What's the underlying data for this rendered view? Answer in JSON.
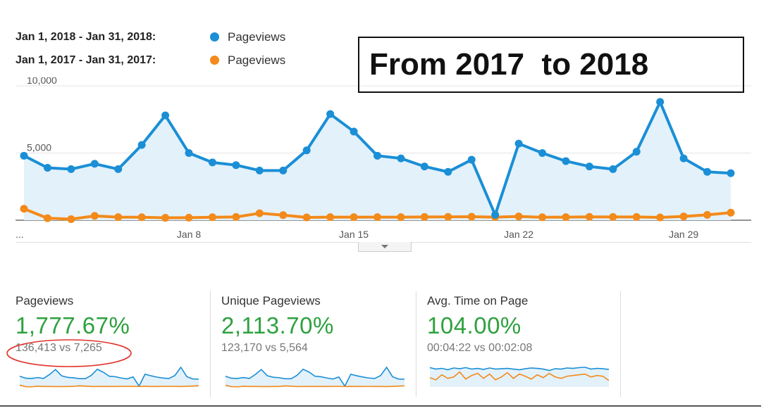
{
  "legend": [
    {
      "range": "Jan 1, 2018 - Jan 31, 2018:",
      "label": "Pageviews",
      "color": "#1a8fd6"
    },
    {
      "range": "Jan 1, 2017 - Jan 31, 2017:",
      "label": "Pageviews",
      "color": "#f38a1a"
    }
  ],
  "callout": {
    "text": "From 2017  to 2018"
  },
  "chart_data": {
    "type": "line",
    "x": [
      "Jan 1",
      "Jan 2",
      "Jan 3",
      "Jan 4",
      "Jan 5",
      "Jan 6",
      "Jan 7",
      "Jan 8",
      "Jan 9",
      "Jan 10",
      "Jan 11",
      "Jan 12",
      "Jan 13",
      "Jan 14",
      "Jan 15",
      "Jan 16",
      "Jan 17",
      "Jan 18",
      "Jan 19",
      "Jan 20",
      "Jan 21",
      "Jan 22",
      "Jan 23",
      "Jan 24",
      "Jan 25",
      "Jan 26",
      "Jan 27",
      "Jan 28",
      "Jan 29",
      "Jan 30",
      "Jan 31"
    ],
    "series": [
      {
        "name": "Pageviews",
        "period": "Jan 1, 2018 - Jan 31, 2018",
        "color": "#1a8fd6",
        "values": [
          4800,
          3900,
          3800,
          4200,
          3800,
          5600,
          7800,
          5000,
          4300,
          4100,
          3700,
          3700,
          5200,
          7900,
          6600,
          4800,
          4600,
          4000,
          3600,
          4500,
          400,
          5700,
          5000,
          4400,
          4000,
          3800,
          5100,
          8800,
          4600,
          3600,
          3500
        ]
      },
      {
        "name": "Pageviews",
        "period": "Jan 1, 2017 - Jan 31, 2017",
        "color": "#f38a1a",
        "values": [
          850,
          150,
          80,
          320,
          230,
          220,
          180,
          190,
          220,
          240,
          520,
          380,
          210,
          230,
          230,
          230,
          230,
          240,
          250,
          260,
          230,
          280,
          220,
          230,
          250,
          240,
          240,
          210,
          280,
          400,
          560
        ]
      }
    ],
    "ytick_labels": [
      "10,000",
      "5,000"
    ],
    "ylim": [
      0,
      10000
    ],
    "xtick_labels": [
      {
        "label": "Jan 8",
        "x": "Jan 8"
      },
      {
        "label": "Jan 15",
        "x": "Jan 15"
      },
      {
        "label": "Jan 22",
        "x": "Jan 22"
      },
      {
        "label": "Jan 29",
        "x": "Jan 29"
      }
    ],
    "ellipsis": "...",
    "grid": true
  },
  "metrics": [
    {
      "title": "Pageviews",
      "pct": "1,777.67%",
      "cmp": "136,413 vs 7,265",
      "spark_a": [
        4800,
        3900,
        3800,
        4200,
        3800,
        5600,
        7800,
        5000,
        4300,
        4100,
        3700,
        3700,
        5200,
        7900,
        6600,
        4800,
        4600,
        4000,
        3600,
        4500,
        400,
        5700,
        5000,
        4400,
        4000,
        3800,
        5100,
        8800,
        4600,
        3600,
        3500
      ],
      "spark_b": [
        850,
        150,
        80,
        320,
        230,
        220,
        180,
        190,
        220,
        240,
        520,
        380,
        210,
        230,
        230,
        230,
        230,
        240,
        250,
        260,
        230,
        280,
        220,
        230,
        250,
        240,
        240,
        210,
        280,
        400,
        560
      ]
    },
    {
      "title": "Unique Pageviews",
      "pct": "2,113.70%",
      "cmp": "123,170 vs 5,564",
      "spark_a": [
        4300,
        3500,
        3400,
        3800,
        3400,
        5000,
        7000,
        4500,
        3900,
        3700,
        3300,
        3300,
        4700,
        7100,
        6000,
        4300,
        4100,
        3600,
        3200,
        4000,
        350,
        5100,
        4500,
        4000,
        3600,
        3400,
        4600,
        7900,
        4100,
        3200,
        3100
      ],
      "spark_b": [
        700,
        120,
        70,
        260,
        190,
        180,
        150,
        160,
        180,
        200,
        430,
        310,
        170,
        190,
        190,
        190,
        190,
        200,
        210,
        210,
        190,
        230,
        180,
        190,
        210,
        200,
        200,
        170,
        230,
        330,
        460
      ]
    },
    {
      "title": "Avg. Time on Page",
      "pct": "104.00%",
      "cmp": "00:04:22 vs 00:02:08",
      "spark_a": [
        270,
        250,
        260,
        240,
        265,
        255,
        270,
        250,
        260,
        245,
        265,
        250,
        255,
        260,
        250,
        240,
        255,
        265,
        260,
        250,
        230,
        255,
        250,
        265,
        260,
        270,
        275,
        250,
        260,
        255,
        245
      ],
      "spark_b": [
        130,
        100,
        170,
        120,
        140,
        210,
        110,
        160,
        190,
        120,
        180,
        100,
        140,
        200,
        120,
        180,
        150,
        110,
        170,
        130,
        190,
        140,
        120,
        150,
        160,
        170,
        180,
        140,
        160,
        150,
        90
      ]
    }
  ]
}
